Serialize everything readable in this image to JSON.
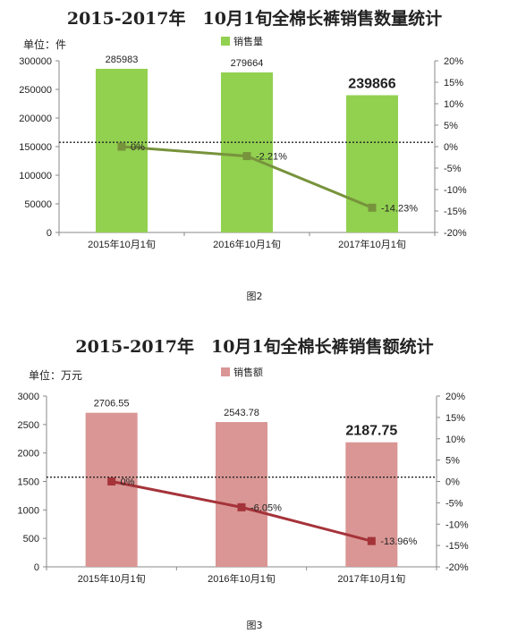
{
  "chart_data": [
    {
      "type": "bar",
      "title": "2015-2017年　10月1旬全棉长裤销售数量统计",
      "unit_label": "单位：件",
      "categories": [
        "2015年10月1旬",
        "2016年10月1旬",
        "2017年10月1旬"
      ],
      "series": [
        {
          "name": "销售量",
          "type": "bar",
          "axis": "left",
          "values": [
            285983,
            279664,
            239866
          ],
          "labels": [
            "285983",
            "279664",
            "239866"
          ],
          "color": "#92d050"
        },
        {
          "type": "line",
          "axis": "right",
          "values": [
            0,
            -2.21,
            -14.23
          ],
          "labels": [
            "0%",
            "-2.21%",
            "-14.23%"
          ],
          "color": "#77933c"
        }
      ],
      "y_left": {
        "ylim": [
          0,
          300000
        ],
        "ticks": [
          "0",
          "50000",
          "100000",
          "150000",
          "200000",
          "250000",
          "300000"
        ]
      },
      "y_right": {
        "ylim": [
          -20,
          20
        ],
        "ticks": [
          "-20%",
          "-15%",
          "-10%",
          "-5%",
          "0%",
          "5%",
          "10%",
          "15%",
          "20%"
        ]
      },
      "reference_line_value": 1,
      "highlight_last_label": true,
      "caption": "图2"
    },
    {
      "type": "bar",
      "title": "2015-2017年　10月1旬全棉长裤销售额统计",
      "unit_label": "单位：万元",
      "categories": [
        "2015年10月1旬",
        "2016年10月1旬",
        "2017年10月1旬"
      ],
      "series": [
        {
          "name": "销售额",
          "type": "bar",
          "axis": "left",
          "values": [
            2706.55,
            2543.78,
            2187.75
          ],
          "labels": [
            "2706.55",
            "2543.78",
            "2187.75"
          ],
          "color": "#d99694"
        },
        {
          "type": "line",
          "axis": "right",
          "values": [
            0,
            -6.05,
            -13.96
          ],
          "labels": [
            "0%",
            "-6.05%",
            "-13.96%"
          ],
          "color": "#a5333a"
        }
      ],
      "y_left": {
        "ylim": [
          0,
          3000
        ],
        "ticks": [
          "0",
          "500",
          "1000",
          "1500",
          "2000",
          "2500",
          "3000"
        ]
      },
      "y_right": {
        "ylim": [
          -20,
          20
        ],
        "ticks": [
          "-20%",
          "-15%",
          "-10%",
          "-5%",
          "0%",
          "5%",
          "10%",
          "15%",
          "20%"
        ]
      },
      "reference_line_value": 1,
      "highlight_last_label": true,
      "caption": "图3"
    }
  ]
}
